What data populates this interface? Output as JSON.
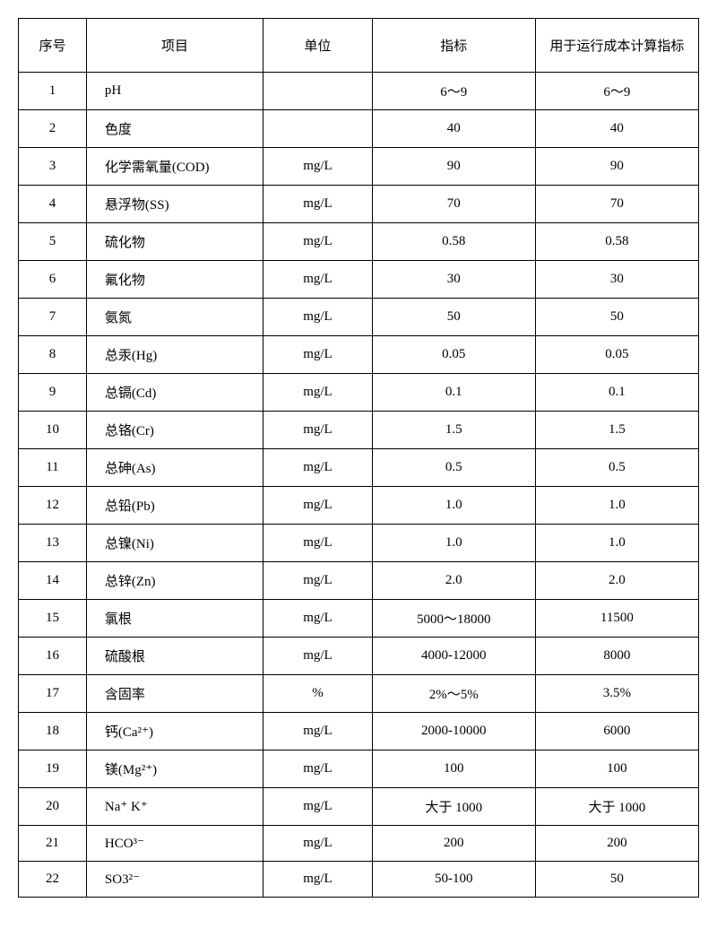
{
  "table": {
    "headers": {
      "seq": "序号",
      "item": "项目",
      "unit": "单位",
      "indicator": "指标",
      "cost": "用于运行成本计算指标"
    },
    "rows": [
      {
        "seq": "1",
        "item": "pH",
        "unit": "",
        "indicator": "6～9",
        "cost": "6～9"
      },
      {
        "seq": "2",
        "item": "色度",
        "unit": "",
        "indicator": "40",
        "cost": "40"
      },
      {
        "seq": "3",
        "item": "化学需氧量(COD)",
        "unit": "mg/L",
        "indicator": "90",
        "cost": "90"
      },
      {
        "seq": "4",
        "item": "悬浮物(SS)",
        "unit": "mg/L",
        "indicator": "70",
        "cost": "70"
      },
      {
        "seq": "5",
        "item": "硫化物",
        "unit": "mg/L",
        "indicator": "0.58",
        "cost": "0.58"
      },
      {
        "seq": "6",
        "item": "氟化物",
        "unit": "mg/L",
        "indicator": "30",
        "cost": "30"
      },
      {
        "seq": "7",
        "item": "氨氮",
        "unit": "mg/L",
        "indicator": "50",
        "cost": "50"
      },
      {
        "seq": "8",
        "item": "总汞(Hg)",
        "unit": "mg/L",
        "indicator": "0.05",
        "cost": "0.05"
      },
      {
        "seq": "9",
        "item": "总镉(Cd)",
        "unit": "mg/L",
        "indicator": "0.1",
        "cost": "0.1"
      },
      {
        "seq": "10",
        "item": "总铬(Cr)",
        "unit": "mg/L",
        "indicator": "1.5",
        "cost": "1.5"
      },
      {
        "seq": "11",
        "item": "总砷(As)",
        "unit": "mg/L",
        "indicator": "0.5",
        "cost": "0.5"
      },
      {
        "seq": "12",
        "item": "总铅(Pb)",
        "unit": "mg/L",
        "indicator": "1.0",
        "cost": "1.0"
      },
      {
        "seq": "13",
        "item": "总镍(Ni)",
        "unit": "mg/L",
        "indicator": "1.0",
        "cost": "1.0"
      },
      {
        "seq": "14",
        "item": "总锌(Zn)",
        "unit": "mg/L",
        "indicator": "2.0",
        "cost": "2.0"
      },
      {
        "seq": "15",
        "item": "氯根",
        "unit": "mg/L",
        "indicator": "5000～18000",
        "cost": "11500"
      },
      {
        "seq": "16",
        "item": "硫酸根",
        "unit": "mg/L",
        "indicator": "4000-12000",
        "cost": "8000"
      },
      {
        "seq": "17",
        "item": "含固率",
        "unit": "%",
        "indicator": "2%～5%",
        "cost": "3.5%"
      },
      {
        "seq": "18",
        "item": "钙(Ca²⁺)",
        "unit": "mg/L",
        "indicator": "2000-10000",
        "cost": "6000"
      },
      {
        "seq": "19",
        "item": "镁(Mg²⁺)",
        "unit": "mg/L",
        "indicator": "100",
        "cost": "100"
      },
      {
        "seq": "20",
        "item": "Na⁺  K⁺",
        "unit": "mg/L",
        "indicator": "大于 1000",
        "cost": "大于 1000"
      },
      {
        "seq": "21",
        "item": "HCO³⁻",
        "unit": "mg/L",
        "indicator": "200",
        "cost": "200"
      },
      {
        "seq": "22",
        "item": "SO3²⁻",
        "unit": "mg/L",
        "indicator": "50-100",
        "cost": "50"
      }
    ]
  },
  "styling": {
    "background_color": "#ffffff",
    "border_color": "#000000",
    "text_color": "#000000",
    "font_size": 15,
    "font_family": "SimSun"
  }
}
